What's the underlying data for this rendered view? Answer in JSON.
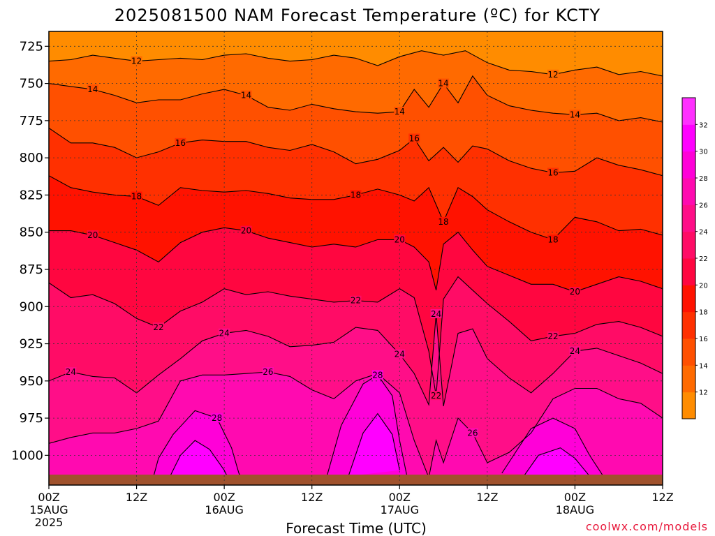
{
  "chart_data": {
    "type": "heatmap",
    "title": "2025081500 NAM Forecast Temperature (ºC) for KCTY",
    "xlabel": "Forecast Time (UTC)",
    "credit": "coolwx.com/models",
    "y_axis": {
      "kind": "pressure (hPa)",
      "range": [
        1020,
        715
      ],
      "ticks": [
        "725",
        "750",
        "775",
        "800",
        "825",
        "850",
        "875",
        "900",
        "925",
        "950",
        "975",
        "1000"
      ]
    },
    "x_axis": {
      "range_hours": [
        0,
        84
      ],
      "ticks": [
        {
          "hour": 0,
          "time": "00Z",
          "date": "15AUG",
          "year": "2025"
        },
        {
          "hour": 12,
          "time": "12Z",
          "date": "",
          "year": ""
        },
        {
          "hour": 24,
          "time": "00Z",
          "date": "16AUG",
          "year": ""
        },
        {
          "hour": 36,
          "time": "12Z",
          "date": "",
          "year": ""
        },
        {
          "hour": 48,
          "time": "00Z",
          "date": "17AUG",
          "year": ""
        },
        {
          "hour": 60,
          "time": "12Z",
          "date": "",
          "year": ""
        },
        {
          "hour": 72,
          "time": "00Z",
          "date": "18AUG",
          "year": ""
        },
        {
          "hour": 84,
          "time": "12Z",
          "date": "",
          "year": ""
        }
      ]
    },
    "colorbar": {
      "levels": [
        12,
        14,
        16,
        18,
        20,
        22,
        24,
        26,
        28,
        30,
        32
      ],
      "tick_labels": [
        "12",
        "14",
        "16",
        "18",
        "20",
        "22",
        "24",
        "26",
        "28",
        "30",
        "32"
      ],
      "colors": [
        "#ff8c00",
        "#ff6a00",
        "#ff5000",
        "#ff3000",
        "#ff1200",
        "#ff0640",
        "#ff0c66",
        "#ff0e88",
        "#ff0ab0",
        "#ff00d8",
        "#ff00ff",
        "#ff30ff"
      ]
    },
    "contours": [
      {
        "level": 12,
        "label": "12",
        "points": [
          [
            0,
            735
          ],
          [
            3,
            734
          ],
          [
            6,
            731
          ],
          [
            9,
            733
          ],
          [
            12,
            735
          ],
          [
            15,
            734
          ],
          [
            18,
            733
          ],
          [
            21,
            734
          ],
          [
            24,
            731
          ],
          [
            27,
            730
          ],
          [
            30,
            733
          ],
          [
            33,
            735
          ],
          [
            36,
            734
          ],
          [
            39,
            731
          ],
          [
            42,
            733
          ],
          [
            45,
            738
          ],
          [
            48,
            732
          ],
          [
            51,
            728
          ],
          [
            54,
            731
          ],
          [
            57,
            728
          ],
          [
            60,
            736
          ],
          [
            63,
            741
          ],
          [
            66,
            742
          ],
          [
            69,
            744
          ],
          [
            72,
            741
          ],
          [
            75,
            739
          ],
          [
            78,
            744
          ],
          [
            81,
            742
          ],
          [
            84,
            745
          ]
        ]
      },
      {
        "level": 14,
        "label": "14",
        "points": [
          [
            0,
            750
          ],
          [
            3,
            752
          ],
          [
            6,
            754
          ],
          [
            9,
            758
          ],
          [
            12,
            763
          ],
          [
            15,
            761
          ],
          [
            18,
            761
          ],
          [
            21,
            757
          ],
          [
            24,
            754
          ],
          [
            27,
            758
          ],
          [
            30,
            766
          ],
          [
            33,
            768
          ],
          [
            36,
            764
          ],
          [
            39,
            767
          ],
          [
            42,
            769
          ],
          [
            45,
            770
          ],
          [
            48,
            769
          ],
          [
            50,
            754
          ],
          [
            52,
            766
          ],
          [
            54,
            750
          ],
          [
            56,
            763
          ],
          [
            58,
            745
          ],
          [
            60,
            758
          ],
          [
            63,
            765
          ],
          [
            66,
            768
          ],
          [
            69,
            770
          ],
          [
            72,
            771
          ],
          [
            75,
            770
          ],
          [
            78,
            775
          ],
          [
            81,
            773
          ],
          [
            84,
            776
          ]
        ]
      },
      {
        "level": 16,
        "label": "16",
        "points": [
          [
            0,
            780
          ],
          [
            3,
            790
          ],
          [
            6,
            790
          ],
          [
            9,
            793
          ],
          [
            12,
            800
          ],
          [
            15,
            796
          ],
          [
            18,
            790
          ],
          [
            21,
            788
          ],
          [
            24,
            789
          ],
          [
            27,
            789
          ],
          [
            30,
            793
          ],
          [
            33,
            795
          ],
          [
            36,
            791
          ],
          [
            39,
            796
          ],
          [
            42,
            804
          ],
          [
            45,
            801
          ],
          [
            48,
            795
          ],
          [
            50,
            787
          ],
          [
            52,
            802
          ],
          [
            54,
            793
          ],
          [
            56,
            803
          ],
          [
            58,
            792
          ],
          [
            60,
            794
          ],
          [
            63,
            802
          ],
          [
            66,
            807
          ],
          [
            69,
            810
          ],
          [
            72,
            809
          ],
          [
            75,
            800
          ],
          [
            78,
            805
          ],
          [
            81,
            808
          ],
          [
            84,
            812
          ]
        ]
      },
      {
        "level": 18,
        "label": "18",
        "points": [
          [
            0,
            812
          ],
          [
            3,
            820
          ],
          [
            6,
            823
          ],
          [
            9,
            825
          ],
          [
            12,
            826
          ],
          [
            15,
            832
          ],
          [
            18,
            820
          ],
          [
            21,
            822
          ],
          [
            24,
            823
          ],
          [
            27,
            822
          ],
          [
            30,
            824
          ],
          [
            33,
            827
          ],
          [
            36,
            828
          ],
          [
            39,
            828
          ],
          [
            42,
            825
          ],
          [
            45,
            821
          ],
          [
            48,
            825
          ],
          [
            50,
            829
          ],
          [
            52,
            820
          ],
          [
            54,
            843
          ],
          [
            56,
            820
          ],
          [
            58,
            826
          ],
          [
            60,
            835
          ],
          [
            63,
            843
          ],
          [
            66,
            850
          ],
          [
            69,
            855
          ],
          [
            72,
            840
          ],
          [
            75,
            843
          ],
          [
            78,
            849
          ],
          [
            81,
            848
          ],
          [
            84,
            852
          ]
        ]
      },
      {
        "level": 20,
        "label": "20",
        "points": [
          [
            0,
            849
          ],
          [
            3,
            849
          ],
          [
            6,
            852
          ],
          [
            9,
            857
          ],
          [
            12,
            862
          ],
          [
            15,
            870
          ],
          [
            18,
            857
          ],
          [
            21,
            850
          ],
          [
            24,
            847
          ],
          [
            27,
            849
          ],
          [
            30,
            854
          ],
          [
            33,
            857
          ],
          [
            36,
            860
          ],
          [
            39,
            858
          ],
          [
            42,
            860
          ],
          [
            45,
            855
          ],
          [
            48,
            855
          ],
          [
            50,
            860
          ],
          [
            52,
            870
          ],
          [
            53,
            889
          ],
          [
            54,
            858
          ],
          [
            56,
            850
          ],
          [
            58,
            862
          ],
          [
            60,
            873
          ],
          [
            63,
            879
          ],
          [
            66,
            885
          ],
          [
            69,
            885
          ],
          [
            72,
            890
          ],
          [
            75,
            885
          ],
          [
            78,
            880
          ],
          [
            81,
            883
          ],
          [
            84,
            888
          ]
        ]
      },
      {
        "level": 22,
        "label": "22",
        "points": [
          [
            0,
            884
          ],
          [
            3,
            894
          ],
          [
            6,
            892
          ],
          [
            9,
            898
          ],
          [
            12,
            908
          ],
          [
            15,
            914
          ],
          [
            18,
            903
          ],
          [
            21,
            897
          ],
          [
            24,
            888
          ],
          [
            27,
            892
          ],
          [
            30,
            890
          ],
          [
            33,
            893
          ],
          [
            36,
            895
          ],
          [
            39,
            897
          ],
          [
            42,
            896
          ],
          [
            45,
            897
          ],
          [
            48,
            888
          ],
          [
            50,
            894
          ],
          [
            52,
            930
          ],
          [
            53,
            960
          ],
          [
            54,
            895
          ],
          [
            56,
            880
          ],
          [
            58,
            889
          ],
          [
            60,
            898
          ],
          [
            63,
            910
          ],
          [
            66,
            923
          ],
          [
            69,
            920
          ],
          [
            72,
            918
          ],
          [
            75,
            912
          ],
          [
            78,
            910
          ],
          [
            81,
            914
          ],
          [
            84,
            920
          ]
        ]
      },
      {
        "level": 24,
        "label": "24",
        "points": [
          [
            0,
            950
          ],
          [
            3,
            944
          ],
          [
            6,
            947
          ],
          [
            9,
            948
          ],
          [
            12,
            958
          ],
          [
            15,
            946
          ],
          [
            18,
            935
          ],
          [
            21,
            923
          ],
          [
            24,
            918
          ],
          [
            27,
            916
          ],
          [
            30,
            920
          ],
          [
            33,
            927
          ],
          [
            36,
            926
          ],
          [
            39,
            924
          ],
          [
            42,
            914
          ],
          [
            45,
            916
          ],
          [
            48,
            932
          ],
          [
            50,
            945
          ],
          [
            52,
            966
          ],
          [
            53,
            905
          ],
          [
            54,
            967
          ],
          [
            56,
            918
          ],
          [
            58,
            915
          ],
          [
            60,
            935
          ],
          [
            63,
            948
          ],
          [
            66,
            958
          ],
          [
            69,
            945
          ],
          [
            72,
            930
          ],
          [
            75,
            928
          ],
          [
            78,
            933
          ],
          [
            81,
            938
          ],
          [
            84,
            945
          ]
        ]
      },
      {
        "level": 26,
        "label": "26",
        "points": [
          [
            0,
            992
          ],
          [
            3,
            988
          ],
          [
            6,
            985
          ],
          [
            9,
            985
          ],
          [
            12,
            982
          ],
          [
            15,
            977
          ],
          [
            18,
            950
          ],
          [
            21,
            946
          ],
          [
            24,
            946
          ],
          [
            27,
            945
          ],
          [
            30,
            944
          ],
          [
            33,
            947
          ],
          [
            36,
            956
          ],
          [
            39,
            962
          ],
          [
            42,
            950
          ],
          [
            45,
            945
          ],
          [
            48,
            958
          ],
          [
            50,
            990
          ],
          [
            52,
            1015
          ],
          [
            53,
            990
          ],
          [
            54,
            1005
          ],
          [
            56,
            975
          ],
          [
            58,
            985
          ],
          [
            60,
            1005
          ],
          [
            63,
            998
          ],
          [
            66,
            985
          ],
          [
            69,
            962
          ],
          [
            72,
            955
          ],
          [
            75,
            955
          ],
          [
            78,
            962
          ],
          [
            81,
            965
          ],
          [
            84,
            975
          ]
        ]
      },
      {
        "level": 28,
        "label": "28",
        "points": [
          [
            14,
            1020
          ],
          [
            15,
            1002
          ],
          [
            17,
            986
          ],
          [
            20,
            970
          ],
          [
            23,
            975
          ],
          [
            25,
            995
          ],
          [
            26,
            1012
          ],
          [
            27,
            1020
          ]
        ]
      },
      {
        "level": 28,
        "label": "28",
        "points": [
          [
            38,
            1015
          ],
          [
            40,
            980
          ],
          [
            43,
            952
          ],
          [
            45,
            946
          ],
          [
            47,
            960
          ],
          [
            48,
            990
          ],
          [
            49,
            1014
          ]
        ]
      },
      {
        "level": 28,
        "label": "",
        "points": [
          [
            62,
            1012
          ],
          [
            64,
            997
          ],
          [
            66,
            982
          ],
          [
            69,
            975
          ],
          [
            72,
            982
          ],
          [
            74,
            1000
          ],
          [
            76,
            1015
          ]
        ]
      },
      {
        "level": 30,
        "label": "",
        "points": [
          [
            16,
            1020
          ],
          [
            18,
            1000
          ],
          [
            20,
            990
          ],
          [
            22,
            996
          ],
          [
            24,
            1010
          ],
          [
            25,
            1020
          ]
        ]
      },
      {
        "level": 30,
        "label": "",
        "points": [
          [
            41,
            1014
          ],
          [
            43,
            985
          ],
          [
            45,
            972
          ],
          [
            47,
            986
          ],
          [
            48,
            1010
          ]
        ]
      },
      {
        "level": 30,
        "label": "",
        "points": [
          [
            65,
            1014
          ],
          [
            67,
            1000
          ],
          [
            70,
            995
          ],
          [
            72,
            1002
          ],
          [
            74,
            1014
          ]
        ]
      }
    ],
    "surface": {
      "pressure": 1013,
      "color": "#a0522d"
    },
    "grid": true
  }
}
